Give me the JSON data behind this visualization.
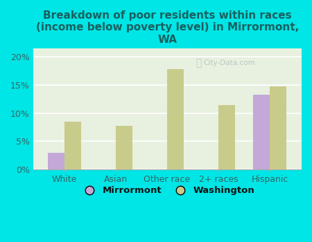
{
  "title": "Breakdown of poor residents within races\n(income below poverty level) in Mirrormont,\nWA",
  "categories": [
    "White",
    "Asian",
    "Other race",
    "2+ races",
    "Hispanic"
  ],
  "mirrormont_values": [
    3.0,
    0,
    0,
    0,
    13.3
  ],
  "washington_values": [
    8.5,
    7.8,
    17.8,
    11.5,
    14.8
  ],
  "mirrormont_color": "#c4a8d8",
  "washington_color": "#c8cc8a",
  "background_outer": "#00e5e5",
  "background_inner_top": "#ffffff",
  "background_inner_bottom": "#e8f0e0",
  "title_color": "#1a6060",
  "tick_label_color": "#336666",
  "yticks": [
    0,
    5,
    10,
    15,
    20
  ],
  "ylim": [
    0,
    21.5
  ],
  "bar_width": 0.32,
  "legend_labels": [
    "Mirrormont",
    "Washington"
  ],
  "watermark": "City-Data.com"
}
